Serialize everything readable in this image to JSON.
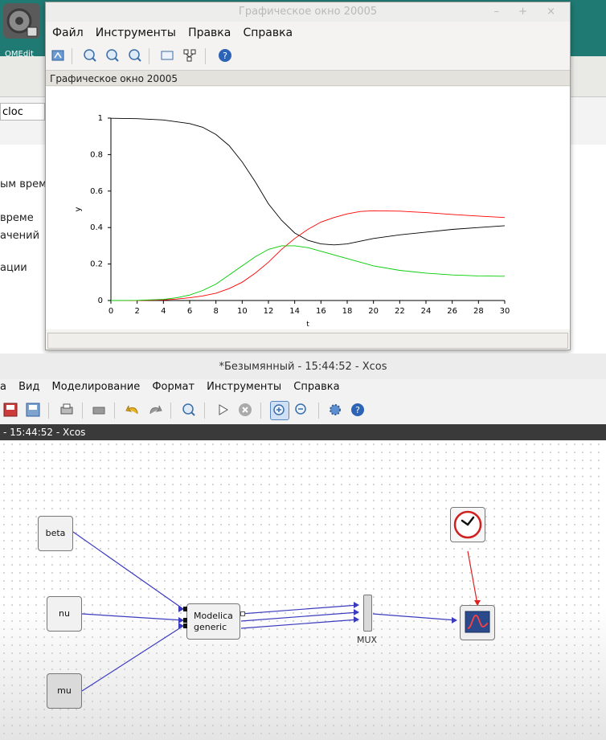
{
  "background": {
    "omedit_icon_label": "OMEdit",
    "search_value": "cloc",
    "text_lines": [
      "ым време",
      "време",
      "ачений",
      "ации"
    ]
  },
  "graph_window": {
    "title": "Графическое окно 20005",
    "menu": [
      "Файл",
      "Инструменты",
      "Правка",
      "Справка"
    ],
    "tab_label": "Графическое окно 20005",
    "title_buttons": "– + ×"
  },
  "chart_data": {
    "type": "line",
    "xlabel": "t",
    "ylabel": "y",
    "xlim": [
      0,
      30
    ],
    "ylim": [
      0,
      1
    ],
    "xticks": [
      "0",
      "2",
      "4",
      "6",
      "8",
      "10",
      "12",
      "14",
      "16",
      "18",
      "20",
      "22",
      "24",
      "26",
      "28",
      "30"
    ],
    "yticks": [
      "0",
      "0.2",
      "0.4",
      "0.6",
      "0.8",
      "1"
    ],
    "grid": false,
    "series": [
      {
        "color": "#000000",
        "x": [
          0,
          2,
          4,
          6,
          7,
          8,
          9,
          10,
          11,
          12,
          13,
          14,
          15,
          16,
          17,
          18,
          19,
          20,
          22,
          24,
          26,
          28,
          30
        ],
        "values": [
          0.999,
          0.997,
          0.99,
          0.97,
          0.95,
          0.91,
          0.85,
          0.76,
          0.65,
          0.53,
          0.44,
          0.37,
          0.33,
          0.31,
          0.305,
          0.31,
          0.325,
          0.34,
          0.36,
          0.375,
          0.39,
          0.4,
          0.41
        ]
      },
      {
        "color": "#ff0000",
        "x": [
          0,
          2,
          4,
          5,
          6,
          7,
          8,
          9,
          10,
          11,
          12,
          13,
          14,
          15,
          16,
          17,
          18,
          19,
          20,
          22,
          24,
          26,
          28,
          30
        ],
        "values": [
          0,
          0,
          0.003,
          0.008,
          0.015,
          0.025,
          0.04,
          0.065,
          0.1,
          0.15,
          0.21,
          0.28,
          0.34,
          0.39,
          0.43,
          0.455,
          0.475,
          0.488,
          0.492,
          0.49,
          0.482,
          0.472,
          0.463,
          0.455
        ]
      },
      {
        "color": "#00cc00",
        "x": [
          0,
          2,
          4,
          5,
          6,
          7,
          8,
          9,
          10,
          11,
          12,
          13,
          14,
          15,
          16,
          17,
          18,
          19,
          20,
          22,
          24,
          26,
          28,
          30
        ],
        "values": [
          0,
          0.001,
          0.006,
          0.015,
          0.03,
          0.055,
          0.09,
          0.14,
          0.19,
          0.24,
          0.28,
          0.3,
          0.3,
          0.29,
          0.27,
          0.25,
          0.23,
          0.21,
          0.19,
          0.165,
          0.15,
          0.14,
          0.135,
          0.133
        ]
      }
    ]
  },
  "xcos": {
    "title": "*Безымянный - 15:44:52 - Xcos",
    "menu": [
      "а",
      "Вид",
      "Моделирование",
      "Формат",
      "Инструменты",
      "Справка"
    ],
    "tab_label": "- 15:44:52 - Xcos",
    "blocks": {
      "beta": "beta",
      "nu": "nu",
      "mu": "mu",
      "modelica_line1": "Modelica",
      "modelica_line2": "generic",
      "mux_label": "MUX"
    }
  }
}
